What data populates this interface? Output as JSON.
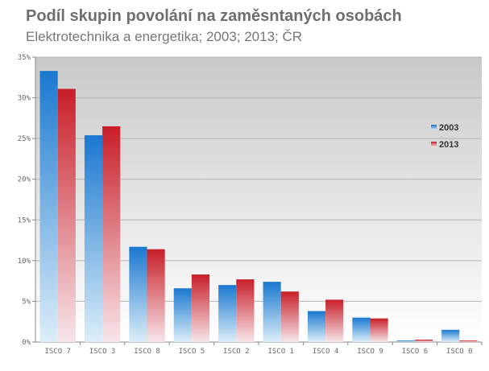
{
  "title": "Podíl skupin povolání na zaměsntaných osobách",
  "subtitle": "Elektrotechnika a energetika; 2003; 2013; ČR",
  "chart_data": {
    "type": "bar",
    "title": "Podíl skupin povolání na zaměsntaných osobách",
    "subtitle": "Elektrotechnika a energetika; 2003; 2013; ČR",
    "xlabel": "",
    "ylabel": "",
    "categories": [
      "ISCO 7",
      "ISCO 3",
      "ISCO 8",
      "ISCO 5",
      "ISCO 2",
      "ISCO 1",
      "ISCO 4",
      "ISCO 9",
      "ISCO 6",
      "ISCO 0"
    ],
    "series": [
      {
        "name": "2003",
        "color": "#1a78d0",
        "values": [
          33.3,
          25.4,
          11.7,
          6.6,
          7.0,
          7.4,
          3.8,
          3.0,
          0.2,
          1.5
        ]
      },
      {
        "name": "2013",
        "color": "#c81e28",
        "values": [
          31.1,
          26.5,
          11.4,
          8.3,
          7.7,
          6.2,
          5.2,
          2.9,
          0.3,
          0.2
        ]
      }
    ],
    "ylim": [
      0,
      35
    ],
    "yticks": [
      "0%",
      "5%",
      "10%",
      "15%",
      "20%",
      "25%",
      "30%",
      "35%"
    ],
    "grid": true,
    "legend_position": "right"
  }
}
